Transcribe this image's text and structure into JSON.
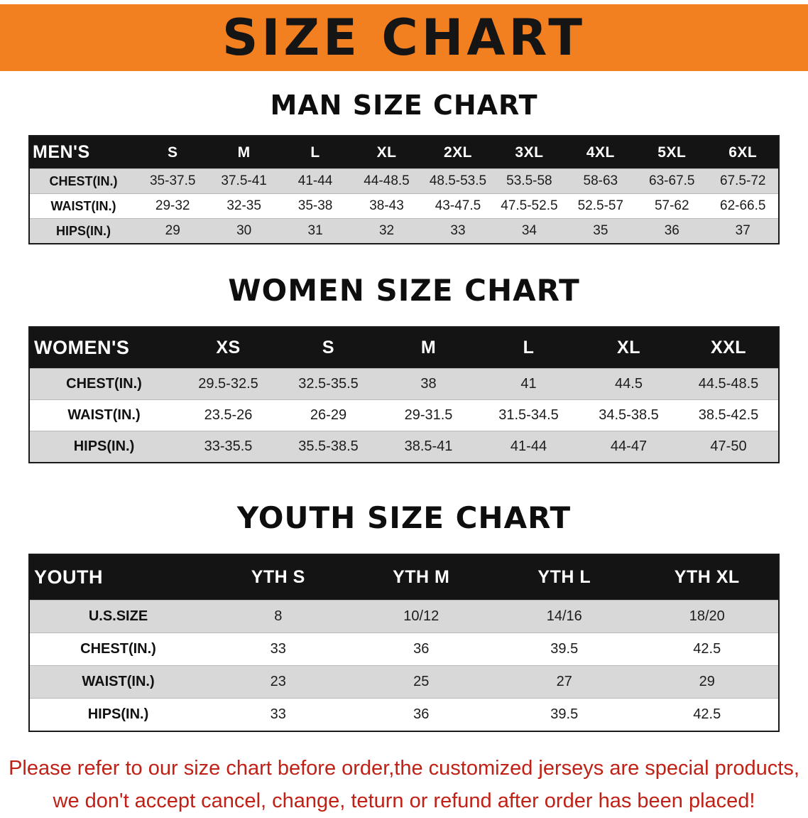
{
  "banner": {
    "title": "SIZE CHART",
    "bg_color": "#f28021",
    "text_color": "#151515"
  },
  "sections": [
    {
      "id": "men",
      "heading": "MAN SIZE CHART",
      "table": {
        "header": [
          "MEN'S",
          "S",
          "M",
          "L",
          "XL",
          "2XL",
          "3XL",
          "4XL",
          "5XL",
          "6XL"
        ],
        "rows": [
          {
            "label": "CHEST(IN.)",
            "values": [
              "35-37.5",
              "37.5-41",
              "41-44",
              "44-48.5",
              "48.5-53.5",
              "53.5-58",
              "58-63",
              "63-67.5",
              "67.5-72"
            ]
          },
          {
            "label": "WAIST(IN.)",
            "values": [
              "29-32",
              "32-35",
              "35-38",
              "38-43",
              "43-47.5",
              "47.5-52.5",
              "52.5-57",
              "57-62",
              "62-66.5"
            ]
          },
          {
            "label": "HIPS(IN.)",
            "values": [
              "29",
              "30",
              "31",
              "32",
              "33",
              "34",
              "35",
              "36",
              "37"
            ]
          }
        ]
      }
    },
    {
      "id": "women",
      "heading": "WOMEN SIZE CHART",
      "table": {
        "header": [
          "WOMEN'S",
          "XS",
          "S",
          "M",
          "L",
          "XL",
          "XXL"
        ],
        "rows": [
          {
            "label": "CHEST(IN.)",
            "values": [
              "29.5-32.5",
              "32.5-35.5",
              "38",
              "41",
              "44.5",
              "44.5-48.5"
            ]
          },
          {
            "label": "WAIST(IN.)",
            "values": [
              "23.5-26",
              "26-29",
              "29-31.5",
              "31.5-34.5",
              "34.5-38.5",
              "38.5-42.5"
            ]
          },
          {
            "label": "HIPS(IN.)",
            "values": [
              "33-35.5",
              "35.5-38.5",
              "38.5-41",
              "41-44",
              "44-47",
              "47-50"
            ]
          }
        ]
      }
    },
    {
      "id": "youth",
      "heading": "YOUTH SIZE CHART",
      "table": {
        "header": [
          "YOUTH",
          "YTH S",
          "YTH M",
          "YTH L",
          "YTH XL"
        ],
        "rows": [
          {
            "label": "U.S.SIZE",
            "values": [
              "8",
              "10/12",
              "14/16",
              "18/20"
            ]
          },
          {
            "label": "CHEST(IN.)",
            "values": [
              "33",
              "36",
              "39.5",
              "42.5"
            ]
          },
          {
            "label": "WAIST(IN.)",
            "values": [
              "23",
              "25",
              "27",
              "29"
            ]
          },
          {
            "label": "HIPS(IN.)",
            "values": [
              "33",
              "36",
              "39.5",
              "42.5"
            ]
          }
        ]
      }
    }
  ],
  "disclaimer": {
    "line1": "Please refer to our size chart before order,the customized jerseys are special products,",
    "line2": "we don't accept cancel, change, teturn or refund after order has been placed!",
    "color": "#c02015"
  }
}
